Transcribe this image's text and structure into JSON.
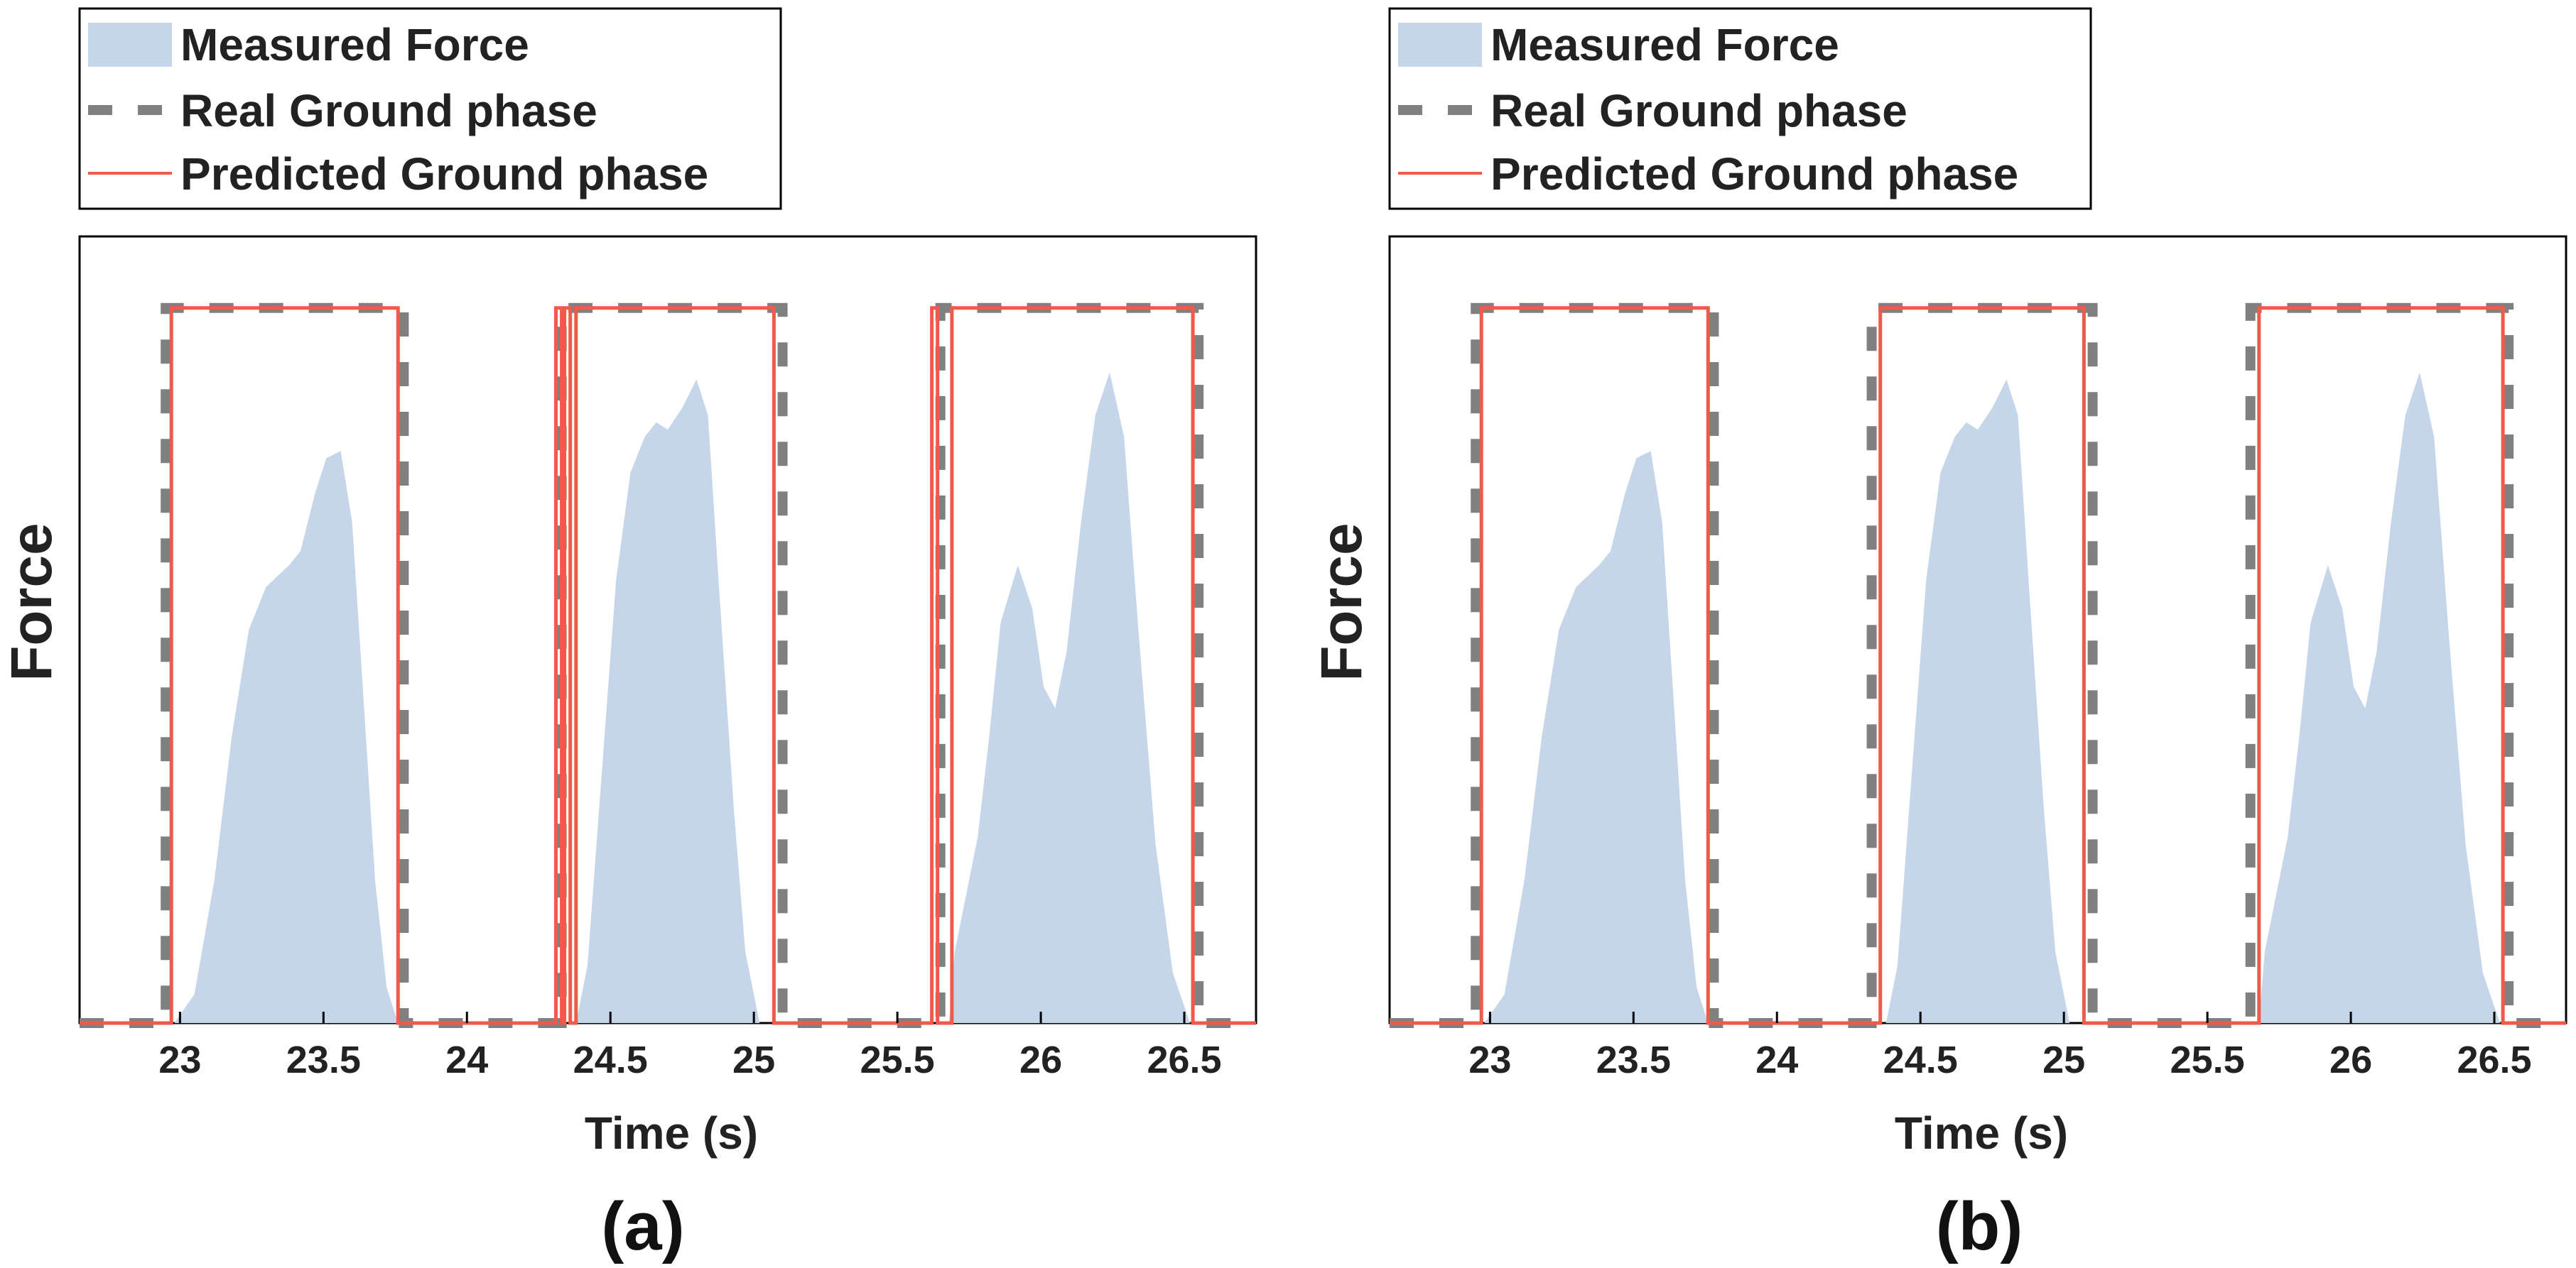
{
  "legend": {
    "entries": [
      "Measured Force",
      "Real Ground phase",
      "Predicted Ground phase"
    ]
  },
  "chart_data": [
    {
      "type": "area",
      "panel_label": "(a)",
      "xlabel": "Time (s)",
      "ylabel": "Force",
      "xlim": [
        22.65,
        26.75
      ],
      "ylim": [
        0,
        1.1
      ],
      "xticks": [
        "23",
        "23.5",
        "24",
        "24.5",
        "25",
        "25.5",
        "26",
        "26.5"
      ],
      "x_tick_values": [
        23,
        23.5,
        24,
        24.5,
        25,
        25.5,
        26,
        26.5
      ],
      "grid": false,
      "legend_position": "above-top-left",
      "series": [
        {
          "name": "Measured Force",
          "type": "area",
          "color": "#c5d6ea",
          "points": [
            [
              22.98,
              0
            ],
            [
              23.05,
              0.04
            ],
            [
              23.12,
              0.2
            ],
            [
              23.18,
              0.4
            ],
            [
              23.24,
              0.55
            ],
            [
              23.3,
              0.61
            ],
            [
              23.38,
              0.64
            ],
            [
              23.42,
              0.66
            ],
            [
              23.47,
              0.74
            ],
            [
              23.51,
              0.79
            ],
            [
              23.56,
              0.8
            ],
            [
              23.6,
              0.7
            ],
            [
              23.64,
              0.45
            ],
            [
              23.68,
              0.2
            ],
            [
              23.72,
              0.05
            ],
            [
              23.76,
              0
            ],
            [
              24.38,
              0
            ],
            [
              24.42,
              0.08
            ],
            [
              24.47,
              0.35
            ],
            [
              24.52,
              0.62
            ],
            [
              24.57,
              0.77
            ],
            [
              24.62,
              0.82
            ],
            [
              24.66,
              0.84
            ],
            [
              24.7,
              0.83
            ],
            [
              24.75,
              0.86
            ],
            [
              24.8,
              0.9
            ],
            [
              24.84,
              0.85
            ],
            [
              24.88,
              0.6
            ],
            [
              24.93,
              0.3
            ],
            [
              24.97,
              0.1
            ],
            [
              25.02,
              0
            ],
            [
              25.68,
              0
            ],
            [
              25.7,
              0.1
            ],
            [
              25.74,
              0.18
            ],
            [
              25.78,
              0.26
            ],
            [
              25.82,
              0.4
            ],
            [
              25.86,
              0.56
            ],
            [
              25.92,
              0.64
            ],
            [
              25.97,
              0.58
            ],
            [
              26.01,
              0.47
            ],
            [
              26.05,
              0.44
            ],
            [
              26.09,
              0.52
            ],
            [
              26.14,
              0.7
            ],
            [
              26.19,
              0.85
            ],
            [
              26.24,
              0.91
            ],
            [
              26.29,
              0.82
            ],
            [
              26.34,
              0.55
            ],
            [
              26.4,
              0.25
            ],
            [
              26.46,
              0.07
            ],
            [
              26.52,
              0
            ]
          ]
        },
        {
          "name": "Real Ground phase",
          "type": "line",
          "style": "dashed",
          "color": "#808080",
          "points": [
            [
              22.65,
              0
            ],
            [
              22.95,
              0
            ],
            [
              22.95,
              1
            ],
            [
              23.78,
              1
            ],
            [
              23.78,
              0
            ],
            [
              24.33,
              0
            ],
            [
              24.33,
              1
            ],
            [
              25.1,
              1
            ],
            [
              25.1,
              0
            ],
            [
              25.65,
              0
            ],
            [
              25.65,
              1
            ],
            [
              26.55,
              1
            ],
            [
              26.55,
              0
            ],
            [
              26.75,
              0
            ]
          ]
        },
        {
          "name": "Predicted Ground phase",
          "type": "line",
          "style": "solid",
          "color": "#f05a4a",
          "points": [
            [
              22.65,
              0
            ],
            [
              22.97,
              0
            ],
            [
              22.97,
              1
            ],
            [
              23.76,
              1
            ],
            [
              23.76,
              0
            ],
            [
              24.31,
              0
            ],
            [
              24.31,
              1
            ],
            [
              24.33,
              1
            ],
            [
              24.33,
              0
            ],
            [
              24.34,
              0
            ],
            [
              24.34,
              1
            ],
            [
              24.36,
              1
            ],
            [
              24.36,
              0
            ],
            [
              24.38,
              0
            ],
            [
              24.38,
              1
            ],
            [
              25.07,
              1
            ],
            [
              25.07,
              0
            ],
            [
              25.62,
              0
            ],
            [
              25.62,
              1
            ],
            [
              25.64,
              1
            ],
            [
              25.64,
              0
            ],
            [
              25.69,
              0
            ],
            [
              25.69,
              1
            ],
            [
              26.53,
              1
            ],
            [
              26.53,
              0
            ],
            [
              26.75,
              0
            ]
          ]
        }
      ]
    },
    {
      "type": "area",
      "panel_label": "(b)",
      "xlabel": "Time (s)",
      "ylabel": "Force",
      "xlim": [
        22.65,
        26.75
      ],
      "ylim": [
        0,
        1.1
      ],
      "xticks": [
        "23",
        "23.5",
        "24",
        "24.5",
        "25",
        "25.5",
        "26",
        "26.5"
      ],
      "x_tick_values": [
        23,
        23.5,
        24,
        24.5,
        25,
        25.5,
        26,
        26.5
      ],
      "grid": false,
      "legend_position": "above-top-left",
      "series": [
        {
          "name": "Measured Force",
          "type": "area",
          "color": "#c5d6ea",
          "points": [
            [
              22.98,
              0
            ],
            [
              23.05,
              0.04
            ],
            [
              23.12,
              0.2
            ],
            [
              23.18,
              0.4
            ],
            [
              23.24,
              0.55
            ],
            [
              23.3,
              0.61
            ],
            [
              23.38,
              0.64
            ],
            [
              23.42,
              0.66
            ],
            [
              23.47,
              0.74
            ],
            [
              23.51,
              0.79
            ],
            [
              23.56,
              0.8
            ],
            [
              23.6,
              0.7
            ],
            [
              23.64,
              0.45
            ],
            [
              23.68,
              0.2
            ],
            [
              23.72,
              0.05
            ],
            [
              23.76,
              0
            ],
            [
              24.38,
              0
            ],
            [
              24.42,
              0.08
            ],
            [
              24.47,
              0.35
            ],
            [
              24.52,
              0.62
            ],
            [
              24.57,
              0.77
            ],
            [
              24.62,
              0.82
            ],
            [
              24.66,
              0.84
            ],
            [
              24.7,
              0.83
            ],
            [
              24.75,
              0.86
            ],
            [
              24.8,
              0.9
            ],
            [
              24.84,
              0.85
            ],
            [
              24.88,
              0.6
            ],
            [
              24.93,
              0.3
            ],
            [
              24.97,
              0.1
            ],
            [
              25.02,
              0
            ],
            [
              25.68,
              0
            ],
            [
              25.7,
              0.1
            ],
            [
              25.74,
              0.18
            ],
            [
              25.78,
              0.26
            ],
            [
              25.82,
              0.4
            ],
            [
              25.86,
              0.56
            ],
            [
              25.92,
              0.64
            ],
            [
              25.97,
              0.58
            ],
            [
              26.01,
              0.47
            ],
            [
              26.05,
              0.44
            ],
            [
              26.09,
              0.52
            ],
            [
              26.14,
              0.7
            ],
            [
              26.19,
              0.85
            ],
            [
              26.24,
              0.91
            ],
            [
              26.29,
              0.82
            ],
            [
              26.34,
              0.55
            ],
            [
              26.4,
              0.25
            ],
            [
              26.46,
              0.07
            ],
            [
              26.52,
              0
            ]
          ]
        },
        {
          "name": "Real Ground phase",
          "type": "line",
          "style": "dashed",
          "color": "#808080",
          "points": [
            [
              22.65,
              0
            ],
            [
              22.95,
              0
            ],
            [
              22.95,
              1
            ],
            [
              23.78,
              1
            ],
            [
              23.78,
              0
            ],
            [
              24.33,
              0
            ],
            [
              24.33,
              1
            ],
            [
              25.1,
              1
            ],
            [
              25.1,
              0
            ],
            [
              25.65,
              0
            ],
            [
              25.65,
              1
            ],
            [
              26.55,
              1
            ],
            [
              26.55,
              0
            ],
            [
              26.75,
              0
            ]
          ]
        },
        {
          "name": "Predicted Ground phase",
          "type": "line",
          "style": "solid",
          "color": "#f05a4a",
          "points": [
            [
              22.65,
              0
            ],
            [
              22.97,
              0
            ],
            [
              22.97,
              1
            ],
            [
              23.76,
              1
            ],
            [
              23.76,
              0
            ],
            [
              24.36,
              0
            ],
            [
              24.36,
              1
            ],
            [
              25.07,
              1
            ],
            [
              25.07,
              0
            ],
            [
              25.68,
              0
            ],
            [
              25.68,
              1
            ],
            [
              26.53,
              1
            ],
            [
              26.53,
              0
            ],
            [
              26.75,
              0
            ]
          ]
        }
      ]
    }
  ]
}
